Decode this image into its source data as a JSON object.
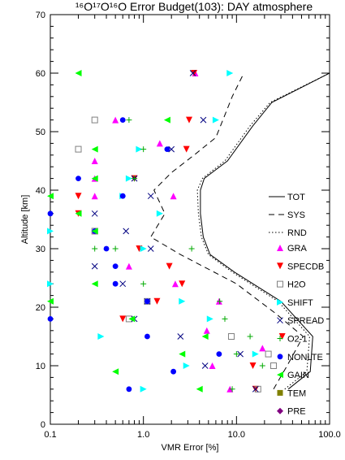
{
  "chart_data": {
    "type": "scatter",
    "title": "¹⁶O¹⁷O¹⁶O Error Budget(103): DAY atmosphere",
    "xlabel": "VMR Error [%]",
    "ylabel": "Altitude [km]",
    "xscale": "log",
    "xlim": [
      0.1,
      100
    ],
    "ylim": [
      0,
      70
    ],
    "x_ticks": [
      0.1,
      1,
      10,
      100
    ],
    "x_tick_labels": [
      "0.1",
      "1.0",
      "10.0",
      "100.0"
    ],
    "y_ticks": [
      0,
      10,
      20,
      30,
      40,
      50,
      60,
      70
    ],
    "y_tick_labels": [
      "0",
      "10",
      "20",
      "30",
      "40",
      "50",
      "60",
      "70"
    ],
    "legend_position": "right",
    "lines": [
      {
        "name": "TOT",
        "style": "solid",
        "color": "#000000",
        "points": [
          [
            36,
            6
          ],
          [
            62,
            9
          ],
          [
            66,
            15
          ],
          [
            30,
            21
          ],
          [
            9.5,
            26
          ],
          [
            5.2,
            29
          ],
          [
            4.4,
            32
          ],
          [
            4.1,
            36
          ],
          [
            4.1,
            40
          ],
          [
            4.5,
            42
          ],
          [
            8,
            45
          ],
          [
            15,
            51
          ],
          [
            24,
            55
          ],
          [
            100,
            60
          ],
          [
            100,
            70
          ]
        ]
      },
      {
        "name": "SYS",
        "style": "dashed",
        "color": "#000000",
        "points": [
          [
            25,
            6
          ],
          [
            35,
            10
          ],
          [
            52,
            15
          ],
          [
            26,
            19
          ],
          [
            10,
            24
          ],
          [
            2.5,
            29
          ],
          [
            1.2,
            32
          ],
          [
            1.7,
            36
          ],
          [
            1.3,
            40
          ],
          [
            2,
            43
          ],
          [
            3.5,
            46
          ],
          [
            6,
            49
          ],
          [
            9,
            56
          ],
          [
            12,
            60
          ]
        ]
      },
      {
        "name": "RND",
        "style": "dotted",
        "color": "#000000",
        "points": [
          [
            33,
            6
          ],
          [
            57,
            9
          ],
          [
            61,
            15
          ],
          [
            28,
            21
          ],
          [
            9,
            26
          ],
          [
            5,
            29
          ],
          [
            4.2,
            32
          ],
          [
            3.9,
            36
          ],
          [
            3.8,
            40
          ],
          [
            4.3,
            42
          ],
          [
            7.5,
            45
          ],
          [
            14,
            51
          ],
          [
            23,
            55
          ],
          [
            100,
            60
          ],
          [
            100,
            70
          ]
        ]
      }
    ],
    "series": [
      {
        "name": "GRA",
        "marker": "triangle-up",
        "color": "#ff00ff",
        "points": [
          [
            3.6,
            60
          ],
          [
            0.5,
            52
          ],
          [
            1.5,
            48
          ],
          [
            0.3,
            45
          ],
          [
            0.3,
            42
          ],
          [
            0.3,
            39
          ],
          [
            2.1,
            39
          ],
          [
            0.3,
            33
          ],
          [
            0.7,
            27
          ],
          [
            2.2,
            24
          ],
          [
            6.5,
            21
          ],
          [
            4.8,
            16
          ],
          [
            19,
            13
          ],
          [
            5.5,
            10
          ],
          [
            8.5,
            6
          ]
        ]
      },
      {
        "name": "SPECDB",
        "marker": "triangle-down",
        "color": "#ff0000",
        "points": [
          [
            3.5,
            60
          ],
          [
            3.1,
            52
          ],
          [
            2.9,
            47
          ],
          [
            0.8,
            42
          ],
          [
            0.2,
            39
          ],
          [
            0.2,
            36
          ],
          [
            0.9,
            30
          ],
          [
            1.9,
            27
          ],
          [
            2.6,
            24
          ],
          [
            1.4,
            21
          ],
          [
            0.6,
            18
          ],
          [
            31,
            15
          ],
          [
            15,
            10
          ],
          [
            16,
            6
          ]
        ]
      },
      {
        "name": "H2O",
        "marker": "square-open",
        "color": "#808080",
        "points": [
          [
            0.3,
            52
          ],
          [
            0.2,
            47
          ],
          [
            0.3,
            33
          ],
          [
            1.1,
            21
          ],
          [
            0.7,
            18
          ],
          [
            8.8,
            15
          ],
          [
            22,
            12
          ],
          [
            25,
            10
          ],
          [
            17,
            6
          ]
        ]
      },
      {
        "name": "SHIFT",
        "marker": "triangle-right",
        "color": "#00ffff",
        "points": [
          [
            8.5,
            60
          ],
          [
            6,
            52
          ],
          [
            0.9,
            47
          ],
          [
            0.7,
            42
          ],
          [
            0.6,
            39
          ],
          [
            1.5,
            36
          ],
          [
            0.1,
            33
          ],
          [
            1,
            30
          ],
          [
            0.1,
            24
          ],
          [
            2.6,
            21
          ],
          [
            5.2,
            18
          ],
          [
            0.35,
            15
          ],
          [
            16,
            12
          ],
          [
            2.9,
            10
          ],
          [
            1,
            6
          ]
        ]
      },
      {
        "name": "SPREAD",
        "marker": "x",
        "color": "#000080",
        "points": [
          [
            3.4,
            60
          ],
          [
            4.4,
            52
          ],
          [
            2,
            47
          ],
          [
            0.8,
            42
          ],
          [
            1.2,
            39
          ],
          [
            0.3,
            36
          ],
          [
            0.65,
            33
          ],
          [
            1.2,
            30
          ],
          [
            0.3,
            27
          ],
          [
            0.6,
            24
          ],
          [
            1.1,
            21
          ],
          [
            0.8,
            18
          ],
          [
            2.5,
            15
          ],
          [
            11,
            12
          ],
          [
            4.6,
            10
          ],
          [
            16,
            6
          ]
        ]
      },
      {
        "name": "O2-1",
        "marker": "plus",
        "color": "#00aa00",
        "points": [
          [
            0.7,
            52
          ],
          [
            1,
            47
          ],
          [
            0.8,
            42
          ],
          [
            0.3,
            30
          ],
          [
            0.5,
            30
          ],
          [
            3.3,
            30
          ],
          [
            1,
            24
          ],
          [
            7.5,
            18
          ],
          [
            6.6,
            21
          ],
          [
            14,
            15
          ],
          [
            10,
            12
          ],
          [
            19,
            10
          ],
          [
            9,
            6
          ]
        ]
      },
      {
        "name": "NONLTE",
        "marker": "circle",
        "color": "#0000ff",
        "points": [
          [
            0.6,
            52
          ],
          [
            1.8,
            47
          ],
          [
            0.2,
            42
          ],
          [
            0.6,
            39
          ],
          [
            0.1,
            36
          ],
          [
            0.3,
            33
          ],
          [
            0.4,
            30
          ],
          [
            0.5,
            27
          ],
          [
            0.5,
            24
          ],
          [
            1.1,
            21
          ],
          [
            0.1,
            18
          ],
          [
            1.1,
            15
          ],
          [
            6.5,
            12
          ],
          [
            2.1,
            9
          ],
          [
            0.7,
            6
          ]
        ]
      },
      {
        "name": "GAIN",
        "marker": "triangle-left",
        "color": "#00ff00",
        "points": [
          [
            0.2,
            60
          ],
          [
            1.8,
            52
          ],
          [
            0.3,
            47
          ],
          [
            0.3,
            42
          ],
          [
            0.1,
            39
          ],
          [
            0.2,
            36
          ],
          [
            0.3,
            33
          ],
          [
            0.3,
            24
          ],
          [
            0.1,
            21
          ],
          [
            0.75,
            18
          ],
          [
            4.6,
            15
          ],
          [
            2.6,
            12
          ],
          [
            0.5,
            9
          ],
          [
            4,
            6
          ]
        ]
      },
      {
        "name": "TEM",
        "marker": "square",
        "color": "#808000",
        "points": []
      },
      {
        "name": "PRE",
        "marker": "diamond",
        "color": "#800080",
        "points": []
      }
    ]
  }
}
